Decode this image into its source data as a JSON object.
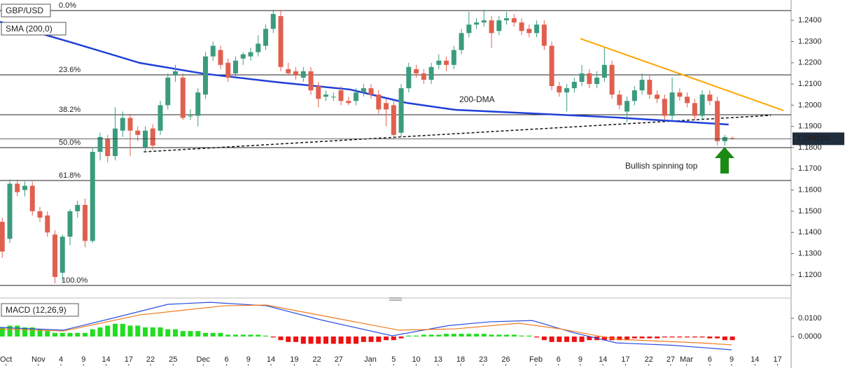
{
  "chart_data": [
    {
      "type": "candlestick",
      "title": "GBP/USD",
      "xlim": [
        -0.3,
        104.8
      ],
      "ylim": [
        1.1094,
        1.2496
      ],
      "yticks": [
        {
          "value": 1.24,
          "label": "1.2400"
        },
        {
          "value": 1.23,
          "label": "1.2300"
        },
        {
          "value": 1.22,
          "label": "1.2200"
        },
        {
          "value": 1.21,
          "label": "1.2100"
        },
        {
          "value": 1.2,
          "label": "1.2000"
        },
        {
          "value": 1.19,
          "label": "1.1900"
        },
        {
          "value": 1.18,
          "label": "1.1800"
        },
        {
          "value": 1.17,
          "label": "1.1700"
        },
        {
          "value": 1.16,
          "label": "1.1600"
        },
        {
          "value": 1.15,
          "label": "1.1500"
        },
        {
          "value": 1.14,
          "label": "1.1400"
        },
        {
          "value": 1.13,
          "label": "1.1300"
        },
        {
          "value": 1.12,
          "label": "1.1200"
        }
      ],
      "up_color": "#3b9b7e",
      "down_color": "#e0604f",
      "candles": [
        [
          1.145,
          1.147,
          1.128,
          1.131
        ],
        [
          1.137,
          1.165,
          1.135,
          1.163
        ],
        [
          1.163,
          1.165,
          1.157,
          1.159
        ],
        [
          1.16,
          1.164,
          1.157,
          1.162
        ],
        [
          1.162,
          1.164,
          1.148,
          1.15
        ],
        [
          1.15,
          1.152,
          1.145,
          1.147
        ],
        [
          1.148,
          1.15,
          1.138,
          1.14
        ],
        [
          1.139,
          1.141,
          1.116,
          1.119
        ],
        [
          1.121,
          1.139,
          1.117,
          1.138
        ],
        [
          1.138,
          1.151,
          1.134,
          1.15
        ],
        [
          1.15,
          1.155,
          1.147,
          1.153
        ],
        [
          1.153,
          1.156,
          1.133,
          1.136
        ],
        [
          1.136,
          1.18,
          1.135,
          1.178
        ],
        [
          1.178,
          1.187,
          1.174,
          1.185
        ],
        [
          1.184,
          1.186,
          1.173,
          1.176
        ],
        [
          1.176,
          1.199,
          1.174,
          1.189
        ],
        [
          1.188,
          1.197,
          1.185,
          1.194
        ],
        [
          1.194,
          1.196,
          1.176,
          1.188
        ],
        [
          1.188,
          1.19,
          1.183,
          1.186
        ],
        [
          1.18,
          1.19,
          1.178,
          1.188
        ],
        [
          1.189,
          1.191,
          1.179,
          1.181
        ],
        [
          1.188,
          1.202,
          1.186,
          1.2
        ],
        [
          1.2,
          1.215,
          1.198,
          1.213
        ],
        [
          1.214,
          1.219,
          1.211,
          1.216
        ],
        [
          1.213,
          1.215,
          1.193,
          1.194
        ],
        [
          1.195,
          1.198,
          1.193,
          1.195
        ],
        [
          1.195,
          1.208,
          1.19,
          1.206
        ],
        [
          1.205,
          1.225,
          1.203,
          1.223
        ],
        [
          1.223,
          1.23,
          1.221,
          1.228
        ],
        [
          1.226,
          1.228,
          1.217,
          1.219
        ],
        [
          1.22,
          1.222,
          1.211,
          1.213
        ],
        [
          1.215,
          1.223,
          1.213,
          1.221
        ],
        [
          1.222,
          1.225,
          1.219,
          1.224
        ],
        [
          1.223,
          1.227,
          1.221,
          1.225
        ],
        [
          1.225,
          1.233,
          1.223,
          1.229
        ],
        [
          1.228,
          1.238,
          1.226,
          1.236
        ],
        [
          1.236,
          1.245,
          1.234,
          1.243
        ],
        [
          1.242,
          1.245,
          1.216,
          1.218
        ],
        [
          1.217,
          1.22,
          1.214,
          1.215
        ],
        [
          1.216,
          1.218,
          1.212,
          1.214
        ],
        [
          1.213,
          1.218,
          1.211,
          1.216
        ],
        [
          1.216,
          1.218,
          1.205,
          1.207
        ],
        [
          1.209,
          1.211,
          1.199,
          1.203
        ],
        [
          1.204,
          1.207,
          1.202,
          1.205
        ],
        [
          1.204,
          1.206,
          1.202,
          1.204
        ],
        [
          1.207,
          1.209,
          1.2,
          1.202
        ],
        [
          1.202,
          1.204,
          1.2,
          1.201
        ],
        [
          1.202,
          1.208,
          1.2,
          1.206
        ],
        [
          1.206,
          1.21,
          1.204,
          1.208
        ],
        [
          1.208,
          1.21,
          1.203,
          1.205
        ],
        [
          1.205,
          1.207,
          1.196,
          1.198
        ],
        [
          1.201,
          1.203,
          1.19,
          1.198
        ],
        [
          1.2,
          1.202,
          1.184,
          1.186
        ],
        [
          1.187,
          1.21,
          1.185,
          1.208
        ],
        [
          1.208,
          1.22,
          1.206,
          1.218
        ],
        [
          1.217,
          1.219,
          1.213,
          1.215
        ],
        [
          1.215,
          1.217,
          1.21,
          1.212
        ],
        [
          1.212,
          1.22,
          1.21,
          1.218
        ],
        [
          1.219,
          1.224,
          1.217,
          1.221
        ],
        [
          1.221,
          1.223,
          1.216,
          1.219
        ],
        [
          1.219,
          1.228,
          1.217,
          1.226
        ],
        [
          1.226,
          1.236,
          1.224,
          1.234
        ],
        [
          1.234,
          1.244,
          1.232,
          1.238
        ],
        [
          1.238,
          1.241,
          1.236,
          1.239
        ],
        [
          1.239,
          1.245,
          1.237,
          1.24
        ],
        [
          1.24,
          1.242,
          1.227,
          1.234
        ],
        [
          1.235,
          1.242,
          1.233,
          1.24
        ],
        [
          1.24,
          1.244,
          1.238,
          1.241
        ],
        [
          1.241,
          1.243,
          1.237,
          1.239
        ],
        [
          1.239,
          1.241,
          1.233,
          1.235
        ],
        [
          1.236,
          1.238,
          1.232,
          1.234
        ],
        [
          1.234,
          1.24,
          1.232,
          1.238
        ],
        [
          1.238,
          1.24,
          1.226,
          1.228
        ],
        [
          1.228,
          1.23,
          1.207,
          1.209
        ],
        [
          1.209,
          1.211,
          1.204,
          1.206
        ],
        [
          1.206,
          1.21,
          1.197,
          1.208
        ],
        [
          1.208,
          1.213,
          1.206,
          1.211
        ],
        [
          1.211,
          1.219,
          1.209,
          1.215
        ],
        [
          1.215,
          1.217,
          1.208,
          1.21
        ],
        [
          1.21,
          1.216,
          1.208,
          1.213
        ],
        [
          1.213,
          1.227,
          1.211,
          1.219
        ],
        [
          1.219,
          1.221,
          1.203,
          1.205
        ],
        [
          1.205,
          1.207,
          1.198,
          1.2
        ],
        [
          1.197,
          1.204,
          1.192,
          1.202
        ],
        [
          1.202,
          1.209,
          1.2,
          1.207
        ],
        [
          1.207,
          1.215,
          1.205,
          1.212
        ],
        [
          1.212,
          1.214,
          1.203,
          1.205
        ],
        [
          1.205,
          1.207,
          1.201,
          1.203
        ],
        [
          1.203,
          1.205,
          1.193,
          1.195
        ],
        [
          1.195,
          1.213,
          1.193,
          1.206
        ],
        [
          1.206,
          1.208,
          1.202,
          1.204
        ],
        [
          1.204,
          1.206,
          1.199,
          1.201
        ],
        [
          1.201,
          1.203,
          1.193,
          1.195
        ],
        [
          1.195,
          1.207,
          1.193,
          1.205
        ],
        [
          1.205,
          1.207,
          1.2,
          1.202
        ],
        [
          1.202,
          1.204,
          1.181,
          1.183
        ],
        [
          1.183,
          1.186,
          1.181,
          1.185
        ],
        [
          1.1845,
          1.1852,
          1.1838,
          1.1842
        ]
      ],
      "sma": {
        "name": "SMA (200,0)",
        "color": "#1e3fd8",
        "x": [
          -0.3,
          9.0,
          18.3,
          26.7,
          36.9,
          46.2,
          53.7,
          60.2,
          70.4,
          81.6,
          96.5
        ],
        "values": [
          1.2393,
          1.2298,
          1.2199,
          1.2149,
          1.2107,
          1.2074,
          1.2011,
          1.1978,
          1.1961,
          1.1942,
          1.1909
        ]
      },
      "fib_levels": [
        {
          "value": 1.2446,
          "label": "0.0%"
        },
        {
          "value": 1.2143,
          "label": "23.6%"
        },
        {
          "value": 1.1955,
          "label": "38.2%"
        },
        {
          "value": 1.18,
          "label": "50.0%"
        },
        {
          "value": 1.1645,
          "label": "61.8%"
        },
        {
          "value": 1.115,
          "label": "100.0%"
        }
      ],
      "trendlines": [
        {
          "color": "#ffa500",
          "style": "solid",
          "x": [
            76.8,
            103.8
          ],
          "values": [
            1.2314,
            1.1975
          ]
        },
        {
          "color": "#111111",
          "style": "dashed",
          "x": [
            18.8,
            102.1
          ],
          "values": [
            1.178,
            1.1952
          ]
        }
      ],
      "last_price": {
        "value": 1.18417,
        "label": "1.184170"
      },
      "annotations": [
        {
          "text": "200-DMA",
          "color": "#7b52c8"
        },
        {
          "text": "Bullish spinning top",
          "color": "#3aa832"
        }
      ]
    },
    {
      "type": "macd",
      "title": "MACD (12,26,9)",
      "xlim": [
        -0.3,
        104.8
      ],
      "ylim": [
        -0.015,
        0.01885
      ],
      "yticks": [
        {
          "value": 0.01,
          "label": "0.0100"
        },
        {
          "value": 0,
          "label": "0.0000"
        }
      ],
      "xticks": [
        {
          "value": 0.5,
          "label": "Oct"
        },
        {
          "value": 4.8,
          "label": "Nov"
        },
        {
          "value": 7.8,
          "label": "4"
        },
        {
          "value": 10.8,
          "label": "9"
        },
        {
          "value": 13.8,
          "label": "14"
        },
        {
          "value": 16.8,
          "label": "17"
        },
        {
          "value": 19.7,
          "label": "22"
        },
        {
          "value": 22.7,
          "label": "25"
        },
        {
          "value": 26.7,
          "label": "Dec"
        },
        {
          "value": 29.8,
          "label": "6"
        },
        {
          "value": 32.7,
          "label": "9"
        },
        {
          "value": 35.7,
          "label": "14"
        },
        {
          "value": 38.8,
          "label": "19"
        },
        {
          "value": 41.8,
          "label": "22"
        },
        {
          "value": 44.7,
          "label": "27"
        },
        {
          "value": 48.9,
          "label": "Jan"
        },
        {
          "value": 52,
          "label": "5"
        },
        {
          "value": 55,
          "label": "10"
        },
        {
          "value": 57.9,
          "label": "13"
        },
        {
          "value": 60.9,
          "label": "18"
        },
        {
          "value": 63.9,
          "label": "23"
        },
        {
          "value": 66.9,
          "label": "26"
        },
        {
          "value": 70.9,
          "label": "Feb"
        },
        {
          "value": 73.9,
          "label": "6"
        },
        {
          "value": 76.8,
          "label": "9"
        },
        {
          "value": 79.8,
          "label": "14"
        },
        {
          "value": 82.8,
          "label": "17"
        },
        {
          "value": 85.9,
          "label": "22"
        },
        {
          "value": 88.8,
          "label": "27"
        },
        {
          "value": 90.9,
          "label": "Mar"
        },
        {
          "value": 94,
          "label": "6"
        },
        {
          "value": 96.9,
          "label": "9"
        },
        {
          "value": 100,
          "label": "14"
        },
        {
          "value": 103,
          "label": "17"
        }
      ],
      "histogram": {
        "up_color": "#22dd22",
        "down_color": "#ee1111",
        "values": [
          0.005,
          0.006,
          0.006,
          0.005,
          0.005,
          0.004,
          0.003,
          0.002,
          0.002,
          0.002,
          0.002,
          0.002,
          0.004,
          0.005,
          0.006,
          0.007,
          0.007,
          0.006,
          0.006,
          0.005,
          0.005,
          0.005,
          0.004,
          0.004,
          0.003,
          0.003,
          0.003,
          0.002,
          0.002,
          0.002,
          0.001,
          0.001,
          0.001,
          0.001,
          0.001,
          0.0005,
          -0.0005,
          -0.002,
          -0.003,
          -0.003,
          -0.004,
          -0.004,
          -0.004,
          -0.004,
          -0.004,
          -0.004,
          -0.004,
          -0.004,
          -0.003,
          -0.003,
          -0.003,
          -0.002,
          -0.002,
          -0.001,
          0.0005,
          0.0005,
          0.001,
          0.001,
          0.001,
          0.0015,
          0.0015,
          0.0015,
          0.0015,
          0.0015,
          0.0015,
          0.001,
          0.001,
          0.001,
          0.001,
          0.0005,
          0.0005,
          -0.0005,
          -0.002,
          -0.003,
          -0.003,
          -0.003,
          -0.003,
          -0.003,
          -0.002,
          -0.002,
          -0.002,
          -0.002,
          -0.002,
          -0.002,
          -0.001,
          -0.001,
          -0.001,
          -0.001,
          -0.0005,
          -0.0005,
          -0.0005,
          -0.0005,
          -0.0005,
          -0.0005,
          -0.001,
          -0.001,
          -0.002,
          -0.002
        ]
      },
      "lines": [
        {
          "color": "#2a4fe0",
          "x": [
            -0.3,
            8.1,
            14.6,
            22,
            27.6,
            35.1,
            42.5,
            51.8,
            59.3,
            64.8,
            70.4,
            76,
            81.6,
            89,
            96.9
          ],
          "values": [
            0.005,
            0.0035,
            0.01,
            0.0177,
            0.0188,
            0.0169,
            0.009,
            0.0004,
            0.006,
            0.0081,
            0.0088,
            0.002,
            -0.0035,
            -0.0048,
            -0.0073
          ]
        },
        {
          "color": "#f07a1a",
          "x": [
            -0.3,
            8.1,
            18.3,
            29.5,
            35.1,
            44.4,
            52.7,
            60.2,
            68.6,
            74.1,
            81.6,
            92.8,
            96.9
          ],
          "values": [
            0.0042,
            0.003,
            0.0119,
            0.0169,
            0.0173,
            0.01,
            0.0035,
            0.0042,
            0.0073,
            0.0042,
            -0.0015,
            -0.0035,
            -0.0046
          ]
        }
      ]
    }
  ]
}
